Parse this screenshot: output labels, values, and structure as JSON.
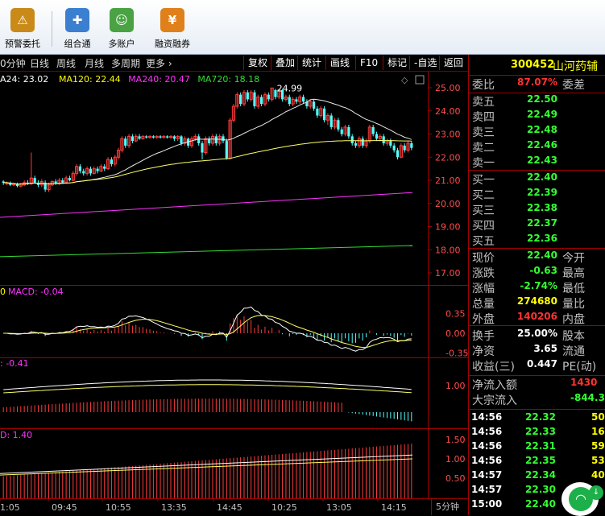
{
  "toolbar": [
    {
      "label": "预警委托",
      "icon": "warning-order-icon",
      "glyph": "⚠",
      "color": "#c98a18"
    },
    {
      "label": "组合通",
      "icon": "puzzle-icon",
      "glyph": "✚",
      "color": "#3b7fd0"
    },
    {
      "label": "多账户",
      "icon": "multi-account-icon",
      "glyph": "☺",
      "color": "#4aa243"
    },
    {
      "label": "融资融券",
      "icon": "margin-trading-icon",
      "glyph": "¥",
      "color": "#e0801a"
    }
  ],
  "menu": {
    "periods": [
      "0分钟",
      "日线",
      "周线",
      "月线",
      "多周期",
      "更多 ›"
    ],
    "right_buttons": [
      "复权",
      "叠加",
      "统计",
      "画线",
      "F10",
      "标记",
      "-自选",
      "返回"
    ]
  },
  "stock": {
    "code": "300452",
    "name": "山河药辅"
  },
  "ma_legend": [
    {
      "text": "A24: 23.02",
      "color": "#ffffff"
    },
    {
      "text": "MA120: 22.44",
      "color": "#ffff00"
    },
    {
      "text": "MA240: 20.47",
      "color": "#ff33ff"
    },
    {
      "text": "MA720: 18.18",
      "color": "#33dd33"
    }
  ],
  "main_chart": {
    "y_ticks": [
      "25.00",
      "24.00",
      "23.00",
      "22.00",
      "21.00",
      "20.00",
      "19.00",
      "18.00",
      "17.00"
    ],
    "high_label": "24.99",
    "candles": [
      [
        20.95,
        20.9,
        21.0,
        20.8
      ],
      [
        20.85,
        20.9,
        20.95,
        20.8
      ],
      [
        20.9,
        20.8,
        20.95,
        20.75
      ],
      [
        20.8,
        20.85,
        20.9,
        20.75
      ],
      [
        20.85,
        20.75,
        20.9,
        20.7
      ],
      [
        20.75,
        20.85,
        20.9,
        20.7
      ],
      [
        20.8,
        20.9,
        21.0,
        20.75
      ],
      [
        20.9,
        20.85,
        21.0,
        20.8
      ],
      [
        20.85,
        21.1,
        22.2,
        20.8
      ],
      [
        21.1,
        20.9,
        21.2,
        20.85
      ],
      [
        20.9,
        20.8,
        21.0,
        20.7
      ],
      [
        20.8,
        20.95,
        21.05,
        20.7
      ],
      [
        20.9,
        20.6,
        21.0,
        20.5
      ],
      [
        20.6,
        20.8,
        20.9,
        20.5
      ],
      [
        20.8,
        20.95,
        21.0,
        20.75
      ],
      [
        20.95,
        20.85,
        21.05,
        20.8
      ],
      [
        20.85,
        21.0,
        21.1,
        20.8
      ],
      [
        21.0,
        20.9,
        21.1,
        20.85
      ],
      [
        20.9,
        21.1,
        21.2,
        20.85
      ],
      [
        21.1,
        21.0,
        21.2,
        20.95
      ],
      [
        21.0,
        21.3,
        21.4,
        20.95
      ],
      [
        21.3,
        21.6,
        21.7,
        21.2
      ],
      [
        21.6,
        21.4,
        21.7,
        21.3
      ],
      [
        21.4,
        21.3,
        21.5,
        21.2
      ],
      [
        21.3,
        21.5,
        21.6,
        21.2
      ],
      [
        21.5,
        21.3,
        21.6,
        21.2
      ],
      [
        21.3,
        21.5,
        21.6,
        21.25
      ],
      [
        21.5,
        21.4,
        21.6,
        21.3
      ],
      [
        21.4,
        21.6,
        21.7,
        21.35
      ],
      [
        21.6,
        21.5,
        21.7,
        21.4
      ],
      [
        21.5,
        21.9,
        22.0,
        21.45
      ],
      [
        21.9,
        21.7,
        22.0,
        21.6
      ],
      [
        21.7,
        22.0,
        22.1,
        21.6
      ],
      [
        22.0,
        22.3,
        22.4,
        21.9
      ],
      [
        22.3,
        22.8,
        22.9,
        22.2
      ],
      [
        22.8,
        22.5,
        22.9,
        22.4
      ],
      [
        22.5,
        22.9,
        23.0,
        22.4
      ],
      [
        22.9,
        22.7,
        23.0,
        22.6
      ],
      [
        22.7,
        22.9,
        23.0,
        22.65
      ],
      [
        22.9,
        22.8,
        23.0,
        22.75
      ],
      [
        22.8,
        22.9,
        22.95,
        22.75
      ],
      [
        22.9,
        22.85,
        22.95,
        22.8
      ],
      [
        22.85,
        22.9,
        22.95,
        22.8
      ],
      [
        22.9,
        22.85,
        22.95,
        22.8
      ],
      [
        22.85,
        22.9,
        22.95,
        22.8
      ],
      [
        22.9,
        22.85,
        22.95,
        22.8
      ],
      [
        22.85,
        22.9,
        22.95,
        22.8
      ],
      [
        22.9,
        22.85,
        22.95,
        22.8
      ],
      [
        22.85,
        22.9,
        22.95,
        22.8
      ],
      [
        22.9,
        22.8,
        22.95,
        22.7
      ],
      [
        22.8,
        22.9,
        22.95,
        22.7
      ],
      [
        22.9,
        22.6,
        22.95,
        22.5
      ],
      [
        22.6,
        22.8,
        22.9,
        22.5
      ],
      [
        22.8,
        22.5,
        22.85,
        22.4
      ],
      [
        22.5,
        22.8,
        22.9,
        22.4
      ],
      [
        22.8,
        22.9,
        23.0,
        22.7
      ],
      [
        22.9,
        22.6,
        23.0,
        22.5
      ],
      [
        22.6,
        22.2,
        22.7,
        21.9
      ],
      [
        22.2,
        22.8,
        22.9,
        22.1
      ],
      [
        22.8,
        22.6,
        22.9,
        22.5
      ],
      [
        22.6,
        22.9,
        23.0,
        22.5
      ],
      [
        22.9,
        22.6,
        23.0,
        22.5
      ],
      [
        22.6,
        22.9,
        23.0,
        22.5
      ],
      [
        22.9,
        22.7,
        23.0,
        22.6
      ],
      [
        22.7,
        21.95,
        22.8,
        21.9
      ],
      [
        21.95,
        23.6,
        23.7,
        21.9
      ],
      [
        23.6,
        24.2,
        24.3,
        23.5
      ],
      [
        24.2,
        24.7,
        24.8,
        24.1
      ],
      [
        24.7,
        24.3,
        24.8,
        24.2
      ],
      [
        24.3,
        24.8,
        24.9,
        24.2
      ],
      [
        24.8,
        24.5,
        24.9,
        24.4
      ],
      [
        24.5,
        24.8,
        24.9,
        24.4
      ],
      [
        24.8,
        24.2,
        24.9,
        24.1
      ],
      [
        24.2,
        24.6,
        24.7,
        24.1
      ],
      [
        24.6,
        24.3,
        24.7,
        24.2
      ],
      [
        24.3,
        24.7,
        24.8,
        24.2
      ],
      [
        24.7,
        24.5,
        24.8,
        24.4
      ],
      [
        24.5,
        24.99,
        24.99,
        24.4
      ],
      [
        24.9,
        24.6,
        24.95,
        24.5
      ],
      [
        24.6,
        24.9,
        24.95,
        24.5
      ],
      [
        24.9,
        24.5,
        24.95,
        24.4
      ],
      [
        24.5,
        24.6,
        24.7,
        24.4
      ],
      [
        24.6,
        24.3,
        24.7,
        24.2
      ],
      [
        24.3,
        24.5,
        24.6,
        24.2
      ],
      [
        24.5,
        24.4,
        24.6,
        24.3
      ],
      [
        24.4,
        24.6,
        24.7,
        24.3
      ],
      [
        24.6,
        24.4,
        24.7,
        24.3
      ],
      [
        24.4,
        24.2,
        24.5,
        24.1
      ],
      [
        24.2,
        24.4,
        24.5,
        24.1
      ],
      [
        24.4,
        24.1,
        24.5,
        24.0
      ],
      [
        24.1,
        23.8,
        24.2,
        23.7
      ],
      [
        23.8,
        24.1,
        24.2,
        23.7
      ],
      [
        24.1,
        23.6,
        24.2,
        23.5
      ],
      [
        23.6,
        23.8,
        23.9,
        23.4
      ],
      [
        23.8,
        23.3,
        23.9,
        23.2
      ],
      [
        23.3,
        23.6,
        23.7,
        23.2
      ],
      [
        23.6,
        23.2,
        23.7,
        23.1
      ],
      [
        23.2,
        23.0,
        23.3,
        22.9
      ],
      [
        23.0,
        23.3,
        23.4,
        22.9
      ],
      [
        23.3,
        22.9,
        23.4,
        22.8
      ],
      [
        22.9,
        22.6,
        23.0,
        22.5
      ],
      [
        22.6,
        22.5,
        22.7,
        22.4
      ],
      [
        22.5,
        22.8,
        22.9,
        22.4
      ],
      [
        22.8,
        22.5,
        22.9,
        22.4
      ],
      [
        22.5,
        22.7,
        22.8,
        22.4
      ],
      [
        22.7,
        23.3,
        23.4,
        22.6
      ],
      [
        23.3,
        23.0,
        23.4,
        22.9
      ],
      [
        23.0,
        22.8,
        23.1,
        22.7
      ],
      [
        22.8,
        22.9,
        23.0,
        22.7
      ],
      [
        22.9,
        22.6,
        23.0,
        22.5
      ],
      [
        22.6,
        22.7,
        22.8,
        22.5
      ],
      [
        22.7,
        22.5,
        22.8,
        22.4
      ],
      [
        22.5,
        22.3,
        22.6,
        22.2
      ],
      [
        22.3,
        22.0,
        22.4,
        21.9
      ],
      [
        22.0,
        22.5,
        22.6,
        21.95
      ],
      [
        22.5,
        22.3,
        22.6,
        22.2
      ],
      [
        22.3,
        22.6,
        22.7,
        22.2
      ],
      [
        22.6,
        22.4,
        22.7,
        22.3
      ]
    ]
  },
  "macd": {
    "label": "MACD: -0.04",
    "prefix": "0",
    "y_ticks": [
      "0.35",
      "0.00",
      "-0.35"
    ]
  },
  "ind2": {
    "label": ": -0.41",
    "y_ticks": [
      "1.00"
    ]
  },
  "ind3": {
    "label": "D: 1.40",
    "y_ticks": [
      "1.50",
      "1.00",
      "0.50"
    ]
  },
  "x_axis": {
    "labels": [
      "1:05",
      "09:45",
      "10:55",
      "13:35",
      "14:45",
      "10:25",
      "13:05",
      "14:15"
    ],
    "period": "5分钟"
  },
  "quote": {
    "webi_label": "委比",
    "webi_value": "87.07%",
    "wecha_label": "委差",
    "sell": [
      {
        "label": "卖五",
        "price": "22.50"
      },
      {
        "label": "卖四",
        "price": "22.49"
      },
      {
        "label": "卖三",
        "price": "22.48"
      },
      {
        "label": "卖二",
        "price": "22.46"
      },
      {
        "label": "卖一",
        "price": "22.43"
      }
    ],
    "buy": [
      {
        "label": "买一",
        "price": "22.40"
      },
      {
        "label": "买二",
        "price": "22.39"
      },
      {
        "label": "买三",
        "price": "22.38"
      },
      {
        "label": "买四",
        "price": "22.37"
      },
      {
        "label": "买五",
        "price": "22.36"
      }
    ],
    "stats": [
      {
        "label": "现价",
        "value": "22.40",
        "right": "今开",
        "color": "#33ff33"
      },
      {
        "label": "涨跌",
        "value": "-0.63",
        "right": "最高",
        "color": "#33ff33"
      },
      {
        "label": "涨幅",
        "value": "-2.74%",
        "right": "最低",
        "color": "#33ff33"
      },
      {
        "label": "总量",
        "value": "274680",
        "right": "量比",
        "color": "#ffff00"
      },
      {
        "label": "外盘",
        "value": "140206",
        "right": "内盘",
        "color": "#ff3333"
      },
      {
        "label": "换手",
        "value": "25.00%",
        "right": "股本",
        "color": "#ffffff"
      },
      {
        "label": "净资",
        "value": "3.65",
        "right": "流通",
        "color": "#ffffff"
      },
      {
        "label": "收益(三)",
        "value": "0.447",
        "right": "PE(动)",
        "color": "#ffffff"
      }
    ],
    "flows": [
      {
        "label": "净流入额",
        "value": "1430",
        "color": "#ff3333"
      },
      {
        "label": "大宗流入",
        "value": "-844.3",
        "color": "#33ff33"
      }
    ]
  },
  "trades": [
    {
      "time": "14:56",
      "price": "22.32",
      "vol": "50",
      "color": "#33ff33"
    },
    {
      "time": "14:56",
      "price": "22.33",
      "vol": "16",
      "color": "#33ff33"
    },
    {
      "time": "14:56",
      "price": "22.31",
      "vol": "59",
      "color": "#33ff33"
    },
    {
      "time": "14:56",
      "price": "22.35",
      "vol": "53",
      "color": "#33ff33"
    },
    {
      "time": "14:57",
      "price": "22.34",
      "vol": "40",
      "color": "#33ff33"
    },
    {
      "time": "14:57",
      "price": "22.30",
      "vol": "",
      "color": "#33ff33"
    },
    {
      "time": "15:00",
      "price": "22.40",
      "vol": "",
      "color": "#33ff33"
    }
  ],
  "fab": {
    "badge": "↓"
  }
}
